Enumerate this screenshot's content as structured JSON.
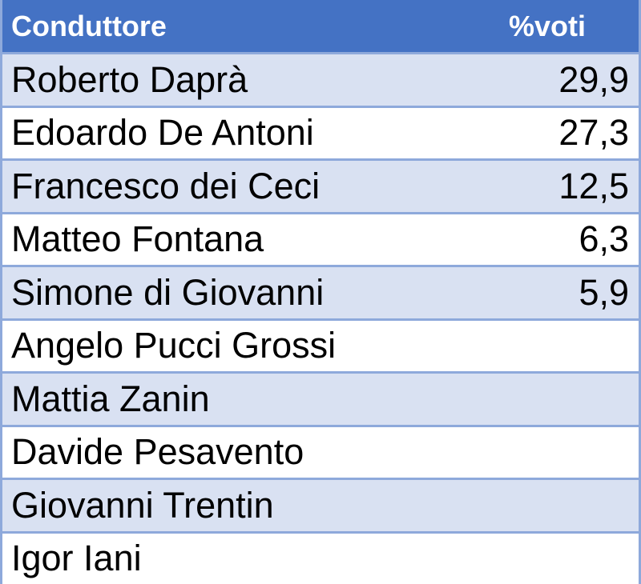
{
  "table": {
    "header": {
      "name": "Conduttore",
      "votes": "%voti"
    },
    "rows": [
      {
        "name": "Roberto Daprà",
        "votes": "29,9"
      },
      {
        "name": "Edoardo De Antoni",
        "votes": "27,3"
      },
      {
        "name": "Francesco dei Ceci",
        "votes": "12,5"
      },
      {
        "name": "Matteo Fontana",
        "votes": "6,3"
      },
      {
        "name": "Simone di Giovanni",
        "votes": "5,9"
      },
      {
        "name": "Angelo Pucci Grossi"
      },
      {
        "name": "Mattia Zanin"
      },
      {
        "name": "Davide Pesavento"
      },
      {
        "name": "Giovanni Trentin"
      },
      {
        "name": "Igor Iani"
      }
    ]
  }
}
